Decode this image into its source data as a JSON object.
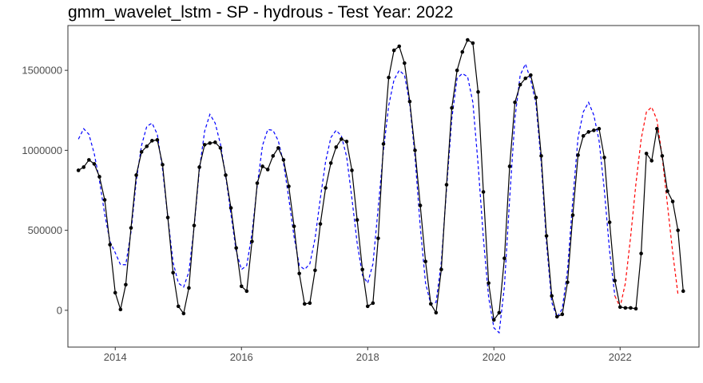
{
  "chart_data": {
    "type": "line",
    "title": "gmm_wavelet_lstm - SP - hydrous - Test Year: 2022",
    "xlabel": "",
    "ylabel": "",
    "xlim": [
      2013.25,
      2023.25
    ],
    "ylim": [
      -230000,
      1780000
    ],
    "x_ticks": [
      2014,
      2016,
      2018,
      2020,
      2022
    ],
    "x_tick_labels": [
      "2014",
      "2016",
      "2018",
      "2020",
      "2022"
    ],
    "y_ticks": [
      0,
      500000,
      1000000,
      1500000
    ],
    "y_tick_labels": [
      "0",
      "500000",
      "1000000",
      "1500000"
    ],
    "grid": false,
    "legend": "none",
    "x_start": 2013.4167,
    "x_step": 0.0833333,
    "series": [
      {
        "role": "actual",
        "color": "#000000",
        "style": "solid",
        "markers": true,
        "values": [
          875000,
          895000,
          940000,
          915000,
          835000,
          690000,
          410000,
          110000,
          5000,
          160000,
          515000,
          845000,
          990000,
          1025000,
          1060000,
          1065000,
          910000,
          580000,
          235000,
          25000,
          -20000,
          140000,
          530000,
          895000,
          1035000,
          1045000,
          1050000,
          1015000,
          845000,
          640000,
          390000,
          150000,
          120000,
          430000,
          795000,
          900000,
          880000,
          965000,
          1015000,
          940000,
          775000,
          525000,
          230000,
          40000,
          45000,
          250000,
          540000,
          765000,
          920000,
          1020000,
          1070000,
          1055000,
          875000,
          565000,
          255000,
          25000,
          45000,
          450000,
          1040000,
          1455000,
          1625000,
          1650000,
          1545000,
          1305000,
          1000000,
          655000,
          305000,
          40000,
          -15000,
          255000,
          785000,
          1265000,
          1500000,
          1615000,
          1690000,
          1670000,
          1365000,
          740000,
          170000,
          -60000,
          -15000,
          325000,
          900000,
          1300000,
          1410000,
          1450000,
          1470000,
          1330000,
          965000,
          465000,
          90000,
          -40000,
          -25000,
          175000,
          595000,
          970000,
          1090000,
          1115000,
          1125000,
          1135000,
          955000,
          550000,
          185000,
          20000,
          15000,
          15000,
          10000,
          355000,
          980000,
          935000,
          1135000,
          965000,
          745000,
          680000,
          500000,
          120000
        ]
      },
      {
        "role": "fitted",
        "color": "#0000ff",
        "style": "dashed",
        "markers": false,
        "values": [
          1070000,
          1135000,
          1100000,
          980000,
          810000,
          600000,
          430000,
          360000,
          285000,
          285000,
          490000,
          810000,
          1030000,
          1150000,
          1170000,
          1100000,
          880000,
          580000,
          300000,
          170000,
          145000,
          240000,
          520000,
          880000,
          1120000,
          1225000,
          1170000,
          1040000,
          840000,
          600000,
          370000,
          255000,
          280000,
          480000,
          780000,
          1030000,
          1130000,
          1125000,
          1060000,
          920000,
          700000,
          460000,
          280000,
          255000,
          290000,
          450000,
          700000,
          930000,
          1080000,
          1125000,
          1090000,
          960000,
          700000,
          420000,
          220000,
          170000,
          290000,
          640000,
          1000000,
          1280000,
          1440000,
          1500000,
          1470000,
          1290000,
          960000,
          520000,
          170000,
          40000,
          50000,
          300000,
          760000,
          1200000,
          1450000,
          1480000,
          1460000,
          1300000,
          910000,
          450000,
          80000,
          -110000,
          -140000,
          150000,
          700000,
          1200000,
          1470000,
          1540000,
          1440000,
          1290000,
          920000,
          420000,
          50000,
          -45000,
          10000,
          250000,
          690000,
          1080000,
          1240000,
          1300000,
          1220000,
          1060000,
          750000,
          370000,
          90000
        ]
      },
      {
        "role": "forecast",
        "color": "#ff0000",
        "style": "dashed",
        "markers": false,
        "x_start": 2021.9167,
        "values": [
          90000,
          20000,
          170000,
          460000,
          790000,
          1070000,
          1240000,
          1270000,
          1190000,
          960000,
          660000,
          360000,
          100000
        ]
      }
    ]
  }
}
